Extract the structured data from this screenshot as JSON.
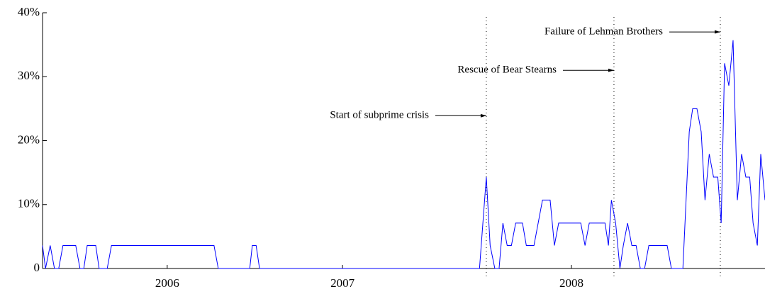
{
  "chart_data": {
    "type": "line",
    "x": [
      0,
      0.7,
      1.8,
      2.8,
      3.8,
      4.8,
      7.8,
      8.8,
      9.7,
      10.5,
      12.5,
      13.3,
      15.2,
      16.2,
      40.3,
      41.3,
      48.7,
      49.3,
      50.2,
      51,
      102.7,
      104.3,
      105.2,
      106.3,
      107.3,
      108.2,
      109.2,
      110.2,
      111.2,
      112.8,
      113.7,
      115.5,
      117.5,
      119.3,
      120.3,
      121.3,
      126.5,
      127.5,
      128.5,
      132.2,
      133,
      133.7,
      134.7,
      135.7,
      136.5,
      137.5,
      138.5,
      139.5,
      140.5,
      141.5,
      142.5,
      146.8,
      147.8,
      150.5,
      152,
      152.8,
      153.8,
      154.8,
      155.7,
      156.7,
      157.7,
      158.7,
      159.5,
      160.3,
      161.3,
      162.3,
      163.3,
      164.3,
      165.3,
      166.2,
      167,
      168,
      168.8,
      169.8
    ],
    "series": [
      {
        "color": "#0000ff",
        "values": [
          3.6,
          0,
          3.6,
          0,
          0,
          3.6,
          3.6,
          0,
          0,
          3.6,
          3.6,
          0,
          0,
          3.6,
          3.6,
          0,
          0,
          3.6,
          3.6,
          0,
          0,
          14.3,
          3.6,
          0,
          0,
          7.1,
          3.6,
          3.6,
          7.1,
          7.1,
          3.6,
          3.6,
          10.7,
          10.7,
          3.6,
          7.1,
          7.1,
          3.6,
          7.1,
          7.1,
          3.6,
          10.7,
          7.1,
          0,
          3.6,
          7.1,
          3.6,
          3.6,
          0,
          0,
          3.6,
          3.6,
          0,
          0,
          21.4,
          25,
          25,
          21.4,
          10.7,
          17.9,
          14.3,
          14.3,
          7.1,
          32.1,
          28.6,
          35.7,
          10.7,
          17.9,
          14.3,
          14.3,
          7.1,
          3.6,
          17.9,
          10.7
        ]
      }
    ],
    "xlim": [
      0,
      169.8
    ],
    "xticks": [
      {
        "value": 29.3,
        "label": "2006"
      },
      {
        "value": 70.5,
        "label": "2007"
      },
      {
        "value": 124.3,
        "label": "2008"
      }
    ],
    "ylim": [
      0,
      40
    ],
    "yticks": [
      0,
      {
        "value": 10,
        "label": "10%"
      },
      {
        "value": 20,
        "label": "20%"
      },
      {
        "value": 30,
        "label": "30%"
      },
      {
        "value": 40,
        "label": "40%"
      }
    ],
    "events": [
      {
        "label": "Start of subprime crisis",
        "x": 104.3,
        "y": 23.9
      },
      {
        "label": "Rescue of Bear Stearns",
        "x": 134.3,
        "y": 31
      },
      {
        "label": "Failure of Lehman Brothers",
        "x": 159.3,
        "y": 37
      }
    ]
  }
}
